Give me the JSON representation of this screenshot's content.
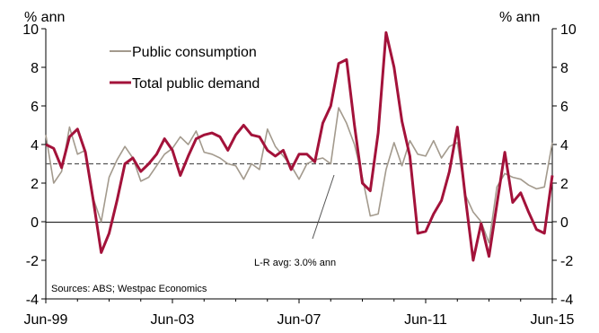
{
  "chart_data": {
    "type": "line",
    "left_unit": "% ann",
    "right_unit": "% ann",
    "ylim": [
      -4,
      10
    ],
    "y_ticks": [
      10,
      8,
      6,
      4,
      2,
      0,
      -2,
      -4
    ],
    "x_ticks": [
      "Jun-99",
      "Jun-03",
      "Jun-07",
      "Jun-11",
      "Jun-15"
    ],
    "x_range": [
      1999.5,
      2015.5
    ],
    "grid": false,
    "legend_position": "top-left",
    "annotation": "L-R avg: 3.0% ann",
    "average_line": 3.0,
    "source": "Sources: ABS; Westpac Economics",
    "series": [
      {
        "name": "Public consumption",
        "color": "#a39a8d",
        "x": [
          1999.5,
          1999.75,
          2000,
          2000.25,
          2000.5,
          2000.75,
          2001,
          2001.25,
          2001.5,
          2001.75,
          2002,
          2002.25,
          2002.5,
          2002.75,
          2003,
          2003.25,
          2003.5,
          2003.75,
          2004,
          2004.25,
          2004.5,
          2004.75,
          2005,
          2005.25,
          2005.5,
          2005.75,
          2006,
          2006.25,
          2006.5,
          2006.75,
          2007,
          2007.25,
          2007.5,
          2007.75,
          2008,
          2008.25,
          2008.5,
          2008.75,
          2009,
          2009.25,
          2009.5,
          2009.75,
          2010,
          2010.25,
          2010.5,
          2010.75,
          2011,
          2011.25,
          2011.5,
          2011.75,
          2012,
          2012.25,
          2012.5,
          2012.75,
          2013,
          2013.25,
          2013.5,
          2013.75,
          2014,
          2014.25,
          2014.5,
          2014.75,
          2015,
          2015.25,
          2015.5
        ],
        "values": [
          4.5,
          2.0,
          2.6,
          4.9,
          3.5,
          3.7,
          1.2,
          0.0,
          2.3,
          3.2,
          3.9,
          3.3,
          2.1,
          2.3,
          2.9,
          3.5,
          3.8,
          4.4,
          4.0,
          4.7,
          3.6,
          3.5,
          3.3,
          3.0,
          2.9,
          2.2,
          3.0,
          2.7,
          4.8,
          3.9,
          3.4,
          2.9,
          2.2,
          3.0,
          3.2,
          3.3,
          3.0,
          5.9,
          5.1,
          4.0,
          2.3,
          0.3,
          0.4,
          2.7,
          4.1,
          2.9,
          4.2,
          3.5,
          3.4,
          4.2,
          3.3,
          3.9,
          4.1,
          1.4,
          0.5,
          0.0,
          -1.1,
          1.8,
          2.5,
          2.3,
          2.2,
          1.9,
          1.7,
          1.8,
          4.1
        ]
      },
      {
        "name": "Total public demand",
        "color": "#a3123a",
        "x": [
          1999.5,
          1999.75,
          2000,
          2000.25,
          2000.5,
          2000.75,
          2001,
          2001.25,
          2001.5,
          2001.75,
          2002,
          2002.25,
          2002.5,
          2002.75,
          2003,
          2003.25,
          2003.5,
          2003.75,
          2004,
          2004.25,
          2004.5,
          2004.75,
          2005,
          2005.25,
          2005.5,
          2005.75,
          2006,
          2006.25,
          2006.5,
          2006.75,
          2007,
          2007.25,
          2007.5,
          2007.75,
          2008,
          2008.25,
          2008.5,
          2008.75,
          2009,
          2009.25,
          2009.5,
          2009.75,
          2010,
          2010.25,
          2010.5,
          2010.75,
          2011,
          2011.25,
          2011.5,
          2011.75,
          2012,
          2012.25,
          2012.5,
          2012.75,
          2013,
          2013.25,
          2013.5,
          2013.75,
          2014,
          2014.25,
          2014.5,
          2014.75,
          2015,
          2015.25,
          2015.5
        ],
        "values": [
          4.0,
          3.8,
          2.8,
          4.4,
          4.8,
          3.6,
          1.1,
          -1.6,
          -0.6,
          1.1,
          3.0,
          3.3,
          2.6,
          3.0,
          3.5,
          4.3,
          3.7,
          2.4,
          3.4,
          4.3,
          4.5,
          4.6,
          4.4,
          3.7,
          4.5,
          5.0,
          4.5,
          4.4,
          3.7,
          3.4,
          3.7,
          2.7,
          3.5,
          3.5,
          3.1,
          5.1,
          6.0,
          8.2,
          8.4,
          5.0,
          2.0,
          1.6,
          4.6,
          9.8,
          8.0,
          5.2,
          3.4,
          -0.6,
          -0.5,
          0.4,
          1.1,
          2.6,
          4.9,
          1.3,
          -2.0,
          -0.1,
          -1.8,
          0.9,
          3.6,
          1.0,
          1.5,
          0.5,
          -0.4,
          -0.6,
          2.4
        ]
      }
    ]
  }
}
